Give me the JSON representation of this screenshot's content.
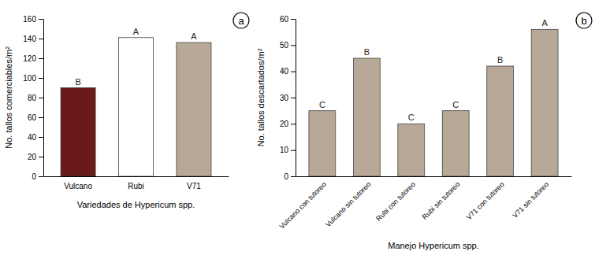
{
  "chart_data": [
    {
      "type": "bar",
      "title": "a",
      "categories": [
        "Vulcano",
        "Rubi",
        "V71"
      ],
      "values": [
        90,
        141,
        136
      ],
      "colors": [
        "#6B1A1A",
        "#FFFFFF",
        "#B8A898"
      ],
      "annotations": [
        "B",
        "A",
        "A"
      ],
      "ylabel": "No. tallos comerciables/m²",
      "xlabel": "Variedades de Hypericum spp.",
      "ylim": [
        0,
        160
      ],
      "yticks": [
        0,
        20,
        40,
        60,
        80,
        100,
        120,
        140,
        160
      ],
      "grid": false
    },
    {
      "type": "bar",
      "title": "b",
      "categories": [
        "Vulcano con tutoreo",
        "Vulcano sin tutoreo",
        "Rubi con tutoreo",
        "Rubi sin tutoreo",
        "V71 con tutoreo",
        "V71 sin tutoreo"
      ],
      "values": [
        25,
        45,
        20,
        25,
        42,
        56
      ],
      "color": "#B8A898",
      "annotations": [
        "C",
        "B",
        "C",
        "C",
        "B",
        "A"
      ],
      "ylabel": "No. tallos descartados/m²",
      "xlabel": "Manejo Hypericum spp.",
      "ylim": [
        0,
        60
      ],
      "yticks": [
        0,
        10,
        20,
        30,
        40,
        50,
        60
      ],
      "grid": false
    }
  ]
}
